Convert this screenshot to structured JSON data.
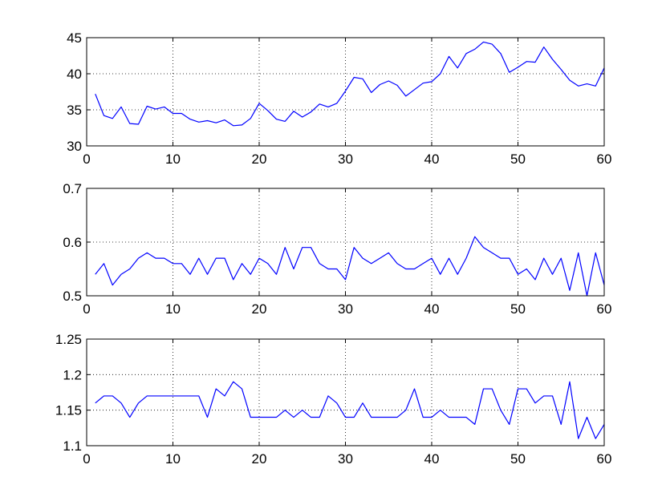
{
  "chart_data": [
    {
      "type": "line",
      "xlim": [
        0,
        60
      ],
      "ylim": [
        30,
        45
      ],
      "xticks": [
        0,
        10,
        20,
        30,
        40,
        50,
        60
      ],
      "yticks": [
        30,
        35,
        40,
        45
      ],
      "xtick_labels": [
        "0",
        "10",
        "20",
        "30",
        "40",
        "50",
        "60"
      ],
      "ytick_labels": [
        "30",
        "35",
        "40",
        "45"
      ],
      "grid": true,
      "series": [
        {
          "color": "#0000ff",
          "x": [
            1,
            2,
            3,
            4,
            5,
            6,
            7,
            8,
            9,
            10,
            11,
            12,
            13,
            14,
            15,
            16,
            17,
            18,
            19,
            20,
            21,
            22,
            23,
            24,
            25,
            26,
            27,
            28,
            29,
            30,
            31,
            32,
            33,
            34,
            35,
            36,
            37,
            38,
            39,
            40,
            41,
            42,
            43,
            44,
            45,
            46,
            47,
            48,
            49,
            50,
            51,
            52,
            53,
            54,
            55,
            56,
            57,
            58,
            59,
            60
          ],
          "values": [
            37.2,
            34.2,
            33.8,
            35.4,
            33.1,
            33.0,
            35.5,
            35.1,
            35.4,
            34.5,
            34.5,
            33.7,
            33.3,
            33.5,
            33.2,
            33.6,
            32.8,
            32.9,
            33.8,
            35.9,
            34.9,
            33.7,
            33.4,
            34.8,
            34.0,
            34.7,
            35.8,
            35.4,
            35.9,
            37.6,
            39.5,
            39.3,
            37.4,
            38.5,
            39.0,
            38.4,
            36.9,
            37.8,
            38.7,
            38.9,
            40.0,
            42.4,
            40.8,
            42.8,
            43.4,
            44.4,
            44.1,
            42.8,
            40.2,
            40.9,
            41.7,
            41.6,
            43.7,
            42.0,
            40.6,
            39.1,
            38.3,
            38.6,
            38.3,
            40.8
          ]
        }
      ]
    },
    {
      "type": "line",
      "xlim": [
        0,
        60
      ],
      "ylim": [
        0.5,
        0.7
      ],
      "xticks": [
        0,
        10,
        20,
        30,
        40,
        50,
        60
      ],
      "yticks": [
        0.5,
        0.6,
        0.7
      ],
      "xtick_labels": [
        "0",
        "10",
        "20",
        "30",
        "40",
        "50",
        "60"
      ],
      "ytick_labels": [
        "0.5",
        "0.6",
        "0.7"
      ],
      "grid": true,
      "series": [
        {
          "color": "#0000ff",
          "x": [
            1,
            2,
            3,
            4,
            5,
            6,
            7,
            8,
            9,
            10,
            11,
            12,
            13,
            14,
            15,
            16,
            17,
            18,
            19,
            20,
            21,
            22,
            23,
            24,
            25,
            26,
            27,
            28,
            29,
            30,
            31,
            32,
            33,
            34,
            35,
            36,
            37,
            38,
            39,
            40,
            41,
            42,
            43,
            44,
            45,
            46,
            47,
            48,
            49,
            50,
            51,
            52,
            53,
            54,
            55,
            56,
            57,
            58,
            59,
            60
          ],
          "values": [
            0.54,
            0.56,
            0.52,
            0.54,
            0.55,
            0.57,
            0.58,
            0.57,
            0.57,
            0.56,
            0.56,
            0.54,
            0.57,
            0.54,
            0.57,
            0.57,
            0.53,
            0.56,
            0.54,
            0.57,
            0.56,
            0.54,
            0.59,
            0.55,
            0.59,
            0.59,
            0.56,
            0.55,
            0.55,
            0.53,
            0.59,
            0.57,
            0.56,
            0.57,
            0.58,
            0.56,
            0.55,
            0.55,
            0.56,
            0.57,
            0.54,
            0.57,
            0.54,
            0.57,
            0.61,
            0.59,
            0.58,
            0.57,
            0.57,
            0.54,
            0.55,
            0.53,
            0.57,
            0.54,
            0.57,
            0.51,
            0.58,
            0.5,
            0.58,
            0.52
          ]
        }
      ]
    },
    {
      "type": "line",
      "xlim": [
        0,
        60
      ],
      "ylim": [
        1.1,
        1.25
      ],
      "xticks": [
        0,
        10,
        20,
        30,
        40,
        50,
        60
      ],
      "yticks": [
        1.1,
        1.15,
        1.2,
        1.25
      ],
      "xtick_labels": [
        "0",
        "10",
        "20",
        "30",
        "40",
        "50",
        "60"
      ],
      "ytick_labels": [
        "1.1",
        "1.15",
        "1.2",
        "1.25"
      ],
      "grid": true,
      "series": [
        {
          "color": "#0000ff",
          "x": [
            1,
            2,
            3,
            4,
            5,
            6,
            7,
            8,
            9,
            10,
            11,
            12,
            13,
            14,
            15,
            16,
            17,
            18,
            19,
            20,
            21,
            22,
            23,
            24,
            25,
            26,
            27,
            28,
            29,
            30,
            31,
            32,
            33,
            34,
            35,
            36,
            37,
            38,
            39,
            40,
            41,
            42,
            43,
            44,
            45,
            46,
            47,
            48,
            49,
            50,
            51,
            52,
            53,
            54,
            55,
            56,
            57,
            58,
            59,
            60
          ],
          "values": [
            1.16,
            1.17,
            1.17,
            1.16,
            1.14,
            1.16,
            1.17,
            1.17,
            1.17,
            1.17,
            1.17,
            1.17,
            1.17,
            1.14,
            1.18,
            1.17,
            1.19,
            1.18,
            1.14,
            1.14,
            1.14,
            1.14,
            1.15,
            1.14,
            1.15,
            1.14,
            1.14,
            1.17,
            1.16,
            1.14,
            1.14,
            1.16,
            1.14,
            1.14,
            1.14,
            1.14,
            1.15,
            1.18,
            1.14,
            1.14,
            1.15,
            1.14,
            1.14,
            1.14,
            1.13,
            1.18,
            1.18,
            1.15,
            1.13,
            1.18,
            1.18,
            1.16,
            1.17,
            1.17,
            1.13,
            1.19,
            1.11,
            1.14,
            1.11,
            1.13
          ]
        }
      ]
    }
  ]
}
